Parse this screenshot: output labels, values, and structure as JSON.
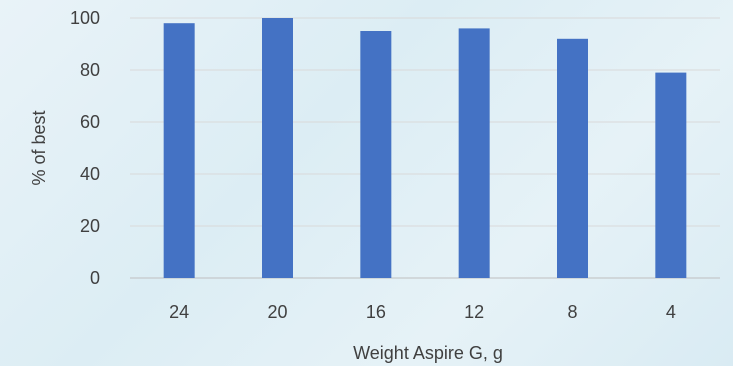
{
  "chart_data": {
    "type": "bar",
    "title": "",
    "xlabel": "Weight Aspire G, g",
    "ylabel": "% of best",
    "categories": [
      "24",
      "20",
      "16",
      "12",
      "8",
      "4"
    ],
    "values": [
      98,
      100,
      95,
      96,
      92,
      79
    ],
    "ylim": [
      0,
      100
    ],
    "yticks": [
      "0",
      "20",
      "40",
      "60",
      "80",
      "100"
    ],
    "grid": true,
    "legend": "none",
    "bar_color": "#4472c4",
    "grid_color": "#d9d9d9",
    "axis_color": "#bfbfbf",
    "text_color": "#404040"
  }
}
